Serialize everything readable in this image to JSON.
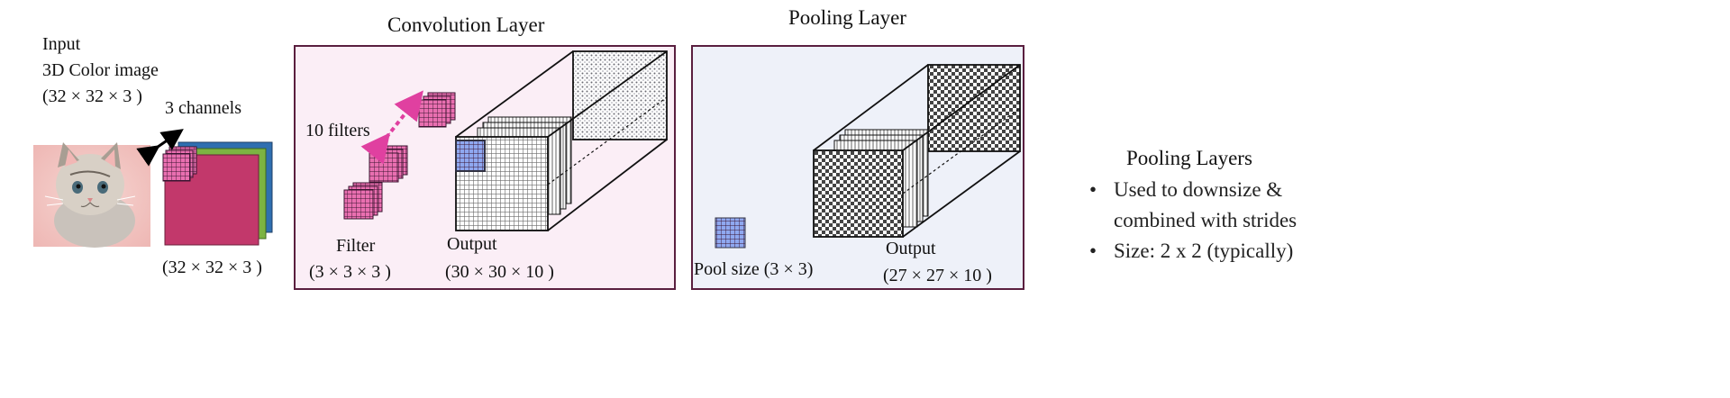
{
  "input": {
    "line1": "Input",
    "line2": "3D Color image",
    "line3": "(32 × 32 × 3 )",
    "channels": "3 channels",
    "dims": "(32 × 32 × 3 )"
  },
  "conv": {
    "title": "Convolution Layer",
    "filters_label": "10 filters",
    "filter_title": "Filter",
    "filter_dims": "(3 × 3 × 3  )",
    "output_title": "Output",
    "output_dims": "(30 × 30 × 10 )"
  },
  "pool": {
    "title": "Pooling Layer",
    "pool_size": "Pool size (3 × 3)",
    "output_title": "Output",
    "output_dims": "(27 × 27 × 10 )"
  },
  "notes": {
    "heading": "Pooling Layers",
    "bullet_symbol": "•",
    "bullets": [
      "Used to downsize & combined with strides",
      "Size: 2 x 2 (typically)"
    ],
    "bullet1_line1": "Used to downsize &",
    "bullet1_line2": "combined with strides",
    "bullet2": "Size: 2 x 2 (typically)"
  },
  "colors": {
    "panel_border": "#5a1f3f",
    "conv_bg": "#fbeef6",
    "pool_bg": "#eef1f9",
    "filter_pink": "#e96fb0",
    "channel_red": "#c2386b",
    "channel_green": "#7cb342",
    "channel_blue": "#2f6fb0",
    "grid_blue": "#8fa8f0",
    "arrow_magenta": "#e040a0"
  }
}
